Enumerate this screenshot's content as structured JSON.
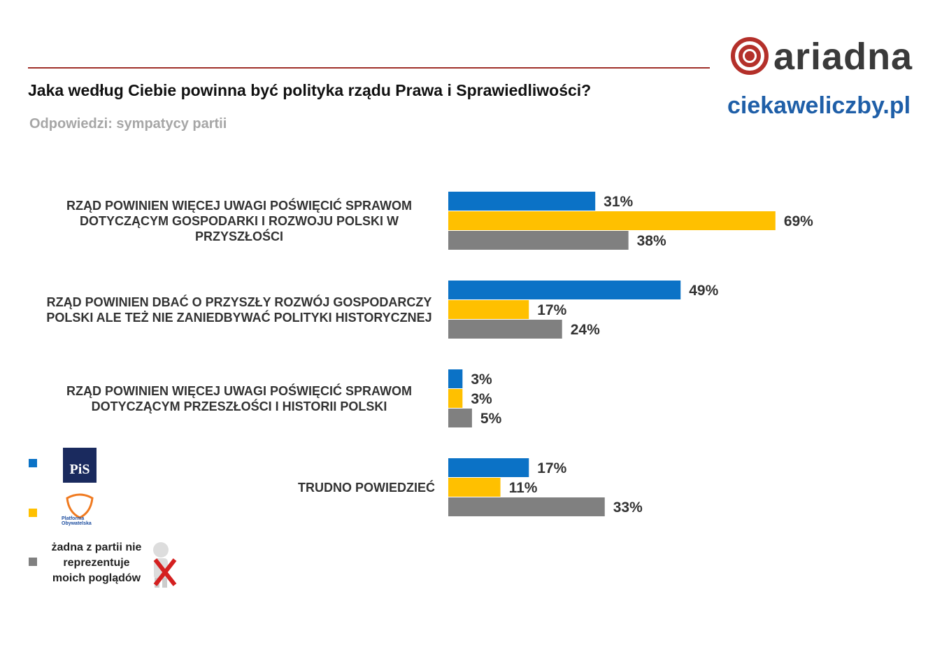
{
  "chart_data": {
    "type": "bar",
    "title": "Jaka według Ciebie powinna być polityka rządu Prawa i Sprawiedliwości?",
    "subtitle": "Odpowiedzi: sympatycy partii",
    "brand": "ariadna",
    "source": "ciekaweliczby.pl",
    "categories": [
      "RZĄD POWINIEN WIĘCEJ UWAGI POŚWIĘCIĆ SPRAWOM DOTYCZĄCYM GOSPODARKI I ROZWOJU POLSKI W PRZYSZŁOŚCI",
      "RZĄD POWINIEN DBAĆ O PRZYSZŁY ROZWÓJ GOSPODARCZY POLSKI ALE TEŻ NIE ZANIEDBYWAĆ POLITYKI HISTORYCZNEJ",
      "RZĄD POWINIEN WIĘCEJ UWAGI POŚWIĘCIĆ SPRAWOM DOTYCZĄCYM PRZESZŁOŚCI I HISTORII POLSKI",
      "TRUDNO POWIEDZIEĆ"
    ],
    "series": [
      {
        "name": "PiS",
        "color": "#0b72c6",
        "values": [
          31,
          49,
          3,
          17
        ],
        "value_labels": [
          "31%",
          "49%",
          "3%",
          "17%"
        ]
      },
      {
        "name": "Platforma Obywatelska",
        "color": "#ffc000",
        "values": [
          69,
          17,
          3,
          11
        ],
        "value_labels": [
          "69%",
          "17%",
          "3%",
          "11%"
        ]
      },
      {
        "name": "żadna z partii nie reprezentuje moich poglądów",
        "color": "#808080",
        "values": [
          38,
          24,
          5,
          33
        ],
        "value_labels": [
          "38%",
          "24%",
          "5%",
          "33%"
        ]
      }
    ]
  }
}
